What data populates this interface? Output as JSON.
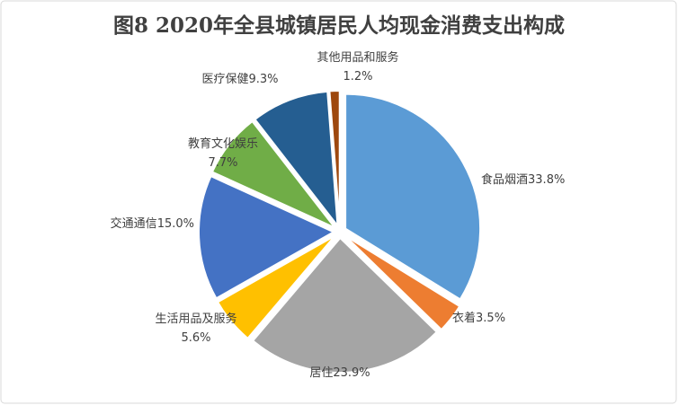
{
  "chart_data": {
    "type": "pie",
    "title": "图8  2020年全县城镇居民人均现金消费支出构成",
    "categories": [
      "食品烟酒",
      "衣着",
      "居住",
      "生活用品及服务",
      "交通通信",
      "教育文化娱乐",
      "医疗保健",
      "其他用品和服务"
    ],
    "values": [
      33.8,
      3.5,
      23.9,
      5.6,
      15.0,
      7.7,
      9.3,
      1.2
    ],
    "value_labels": [
      "33.8%",
      "3.5%",
      "23.9%",
      "5.6%",
      "15.0%",
      "7.7%",
      "9.3%",
      "1.2%"
    ],
    "colors": [
      "#5b9bd5",
      "#ed7d31",
      "#a5a5a5",
      "#ffc000",
      "#4472c4",
      "#70ad47",
      "#255e91",
      "#9e480e"
    ]
  }
}
